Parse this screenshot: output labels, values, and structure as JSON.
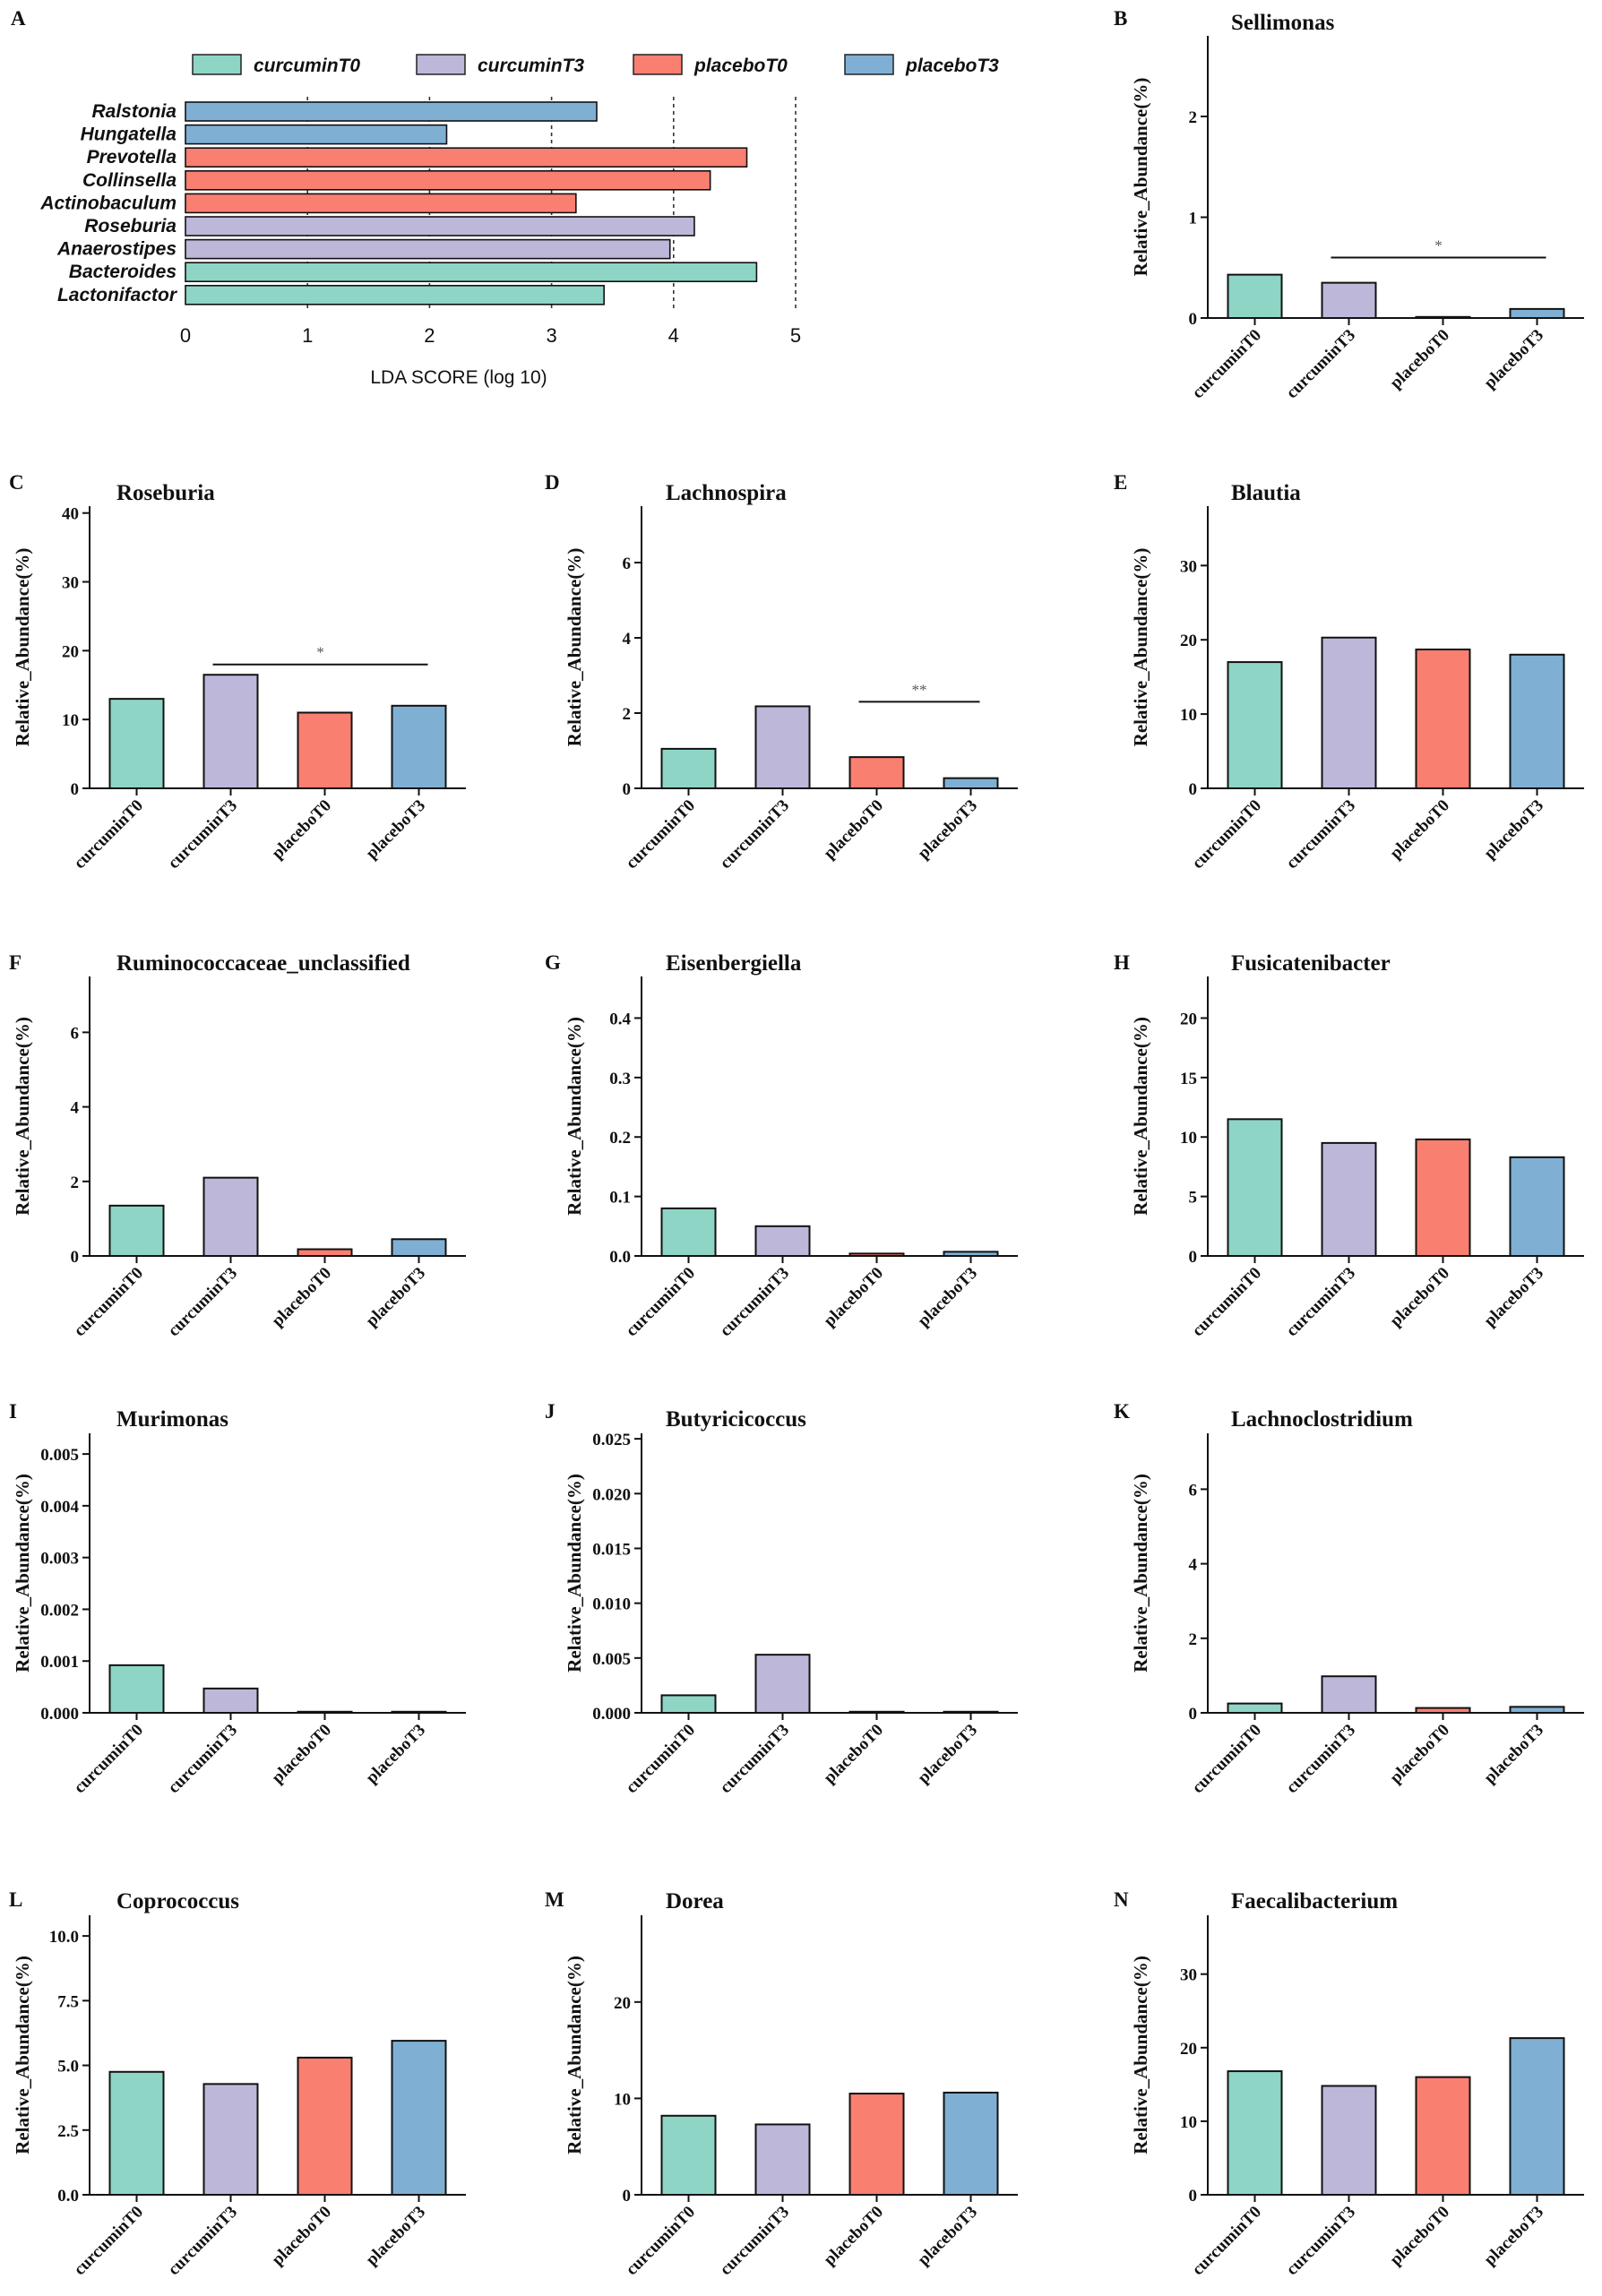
{
  "colors": {
    "curcuminT0": "#8ED5C6",
    "curcuminT3": "#BDB7DA",
    "placeboT0": "#F97F71",
    "placeboT3": "#7FB0D4",
    "axis": "#111111",
    "grid": "#333333"
  },
  "groups": [
    "curcuminT0",
    "curcuminT3",
    "placeboT0",
    "placeboT3"
  ],
  "chart_data": [
    {
      "panel": "A",
      "type": "bar",
      "orientation": "horizontal",
      "legend": [
        "curcuminT0",
        "curcuminT3",
        "placeboT0",
        "placeboT3"
      ],
      "xlabel": "LDA SCORE (log 10)",
      "xlim": [
        0,
        5
      ],
      "xticks": [
        "0",
        "1",
        "2",
        "3",
        "4",
        "5"
      ],
      "grid": "dotted vertical lines at 1-5",
      "taxa": [
        {
          "name": "Ralstonia",
          "group": "placeboT3",
          "value": 3.37
        },
        {
          "name": "Hungatella",
          "group": "placeboT3",
          "value": 2.14
        },
        {
          "name": "Prevotella",
          "group": "placeboT0",
          "value": 4.6
        },
        {
          "name": "Collinsella",
          "group": "placeboT0",
          "value": 4.3
        },
        {
          "name": "Actinobaculum",
          "group": "placeboT0",
          "value": 3.2
        },
        {
          "name": "Roseburia",
          "group": "curcuminT3",
          "value": 4.17
        },
        {
          "name": "Anaerostipes",
          "group": "curcuminT3",
          "value": 3.97
        },
        {
          "name": "Bacteroides",
          "group": "curcuminT0",
          "value": 4.68
        },
        {
          "name": "Lactonifactor",
          "group": "curcuminT0",
          "value": 3.43
        }
      ]
    },
    {
      "panel": "B",
      "type": "bar",
      "title": "Sellimonas",
      "ylabel": "Relative_Abundance(%)",
      "categories": [
        "curcuminT0",
        "curcuminT3",
        "placeboT0",
        "placeboT3"
      ],
      "values": [
        0.43,
        0.35,
        0.01,
        0.09
      ],
      "ylim": [
        0,
        2.8
      ],
      "yticks": [
        "0",
        "1",
        "2"
      ],
      "yticks_values": [
        0,
        1,
        2
      ],
      "sig": {
        "from": 1,
        "to": 3,
        "at": 0.6,
        "label": "*"
      }
    },
    {
      "panel": "C",
      "type": "bar",
      "title": "Roseburia",
      "ylabel": "Relative_Abundance(%)",
      "categories": [
        "curcuminT0",
        "curcuminT3",
        "placeboT0",
        "placeboT3"
      ],
      "values": [
        13,
        16.5,
        11,
        12
      ],
      "ylim": [
        0,
        41
      ],
      "yticks": [
        "0",
        "10",
        "20",
        "30",
        "40"
      ],
      "yticks_values": [
        0,
        10,
        20,
        30,
        40
      ],
      "sig": {
        "from": 1,
        "to": 3,
        "at": 18,
        "label": "*"
      }
    },
    {
      "panel": "D",
      "type": "bar",
      "title": "Lachnospira",
      "ylabel": "Relative_Abundance(%)",
      "categories": [
        "curcuminT0",
        "curcuminT3",
        "placeboT0",
        "placeboT3"
      ],
      "values": [
        1.05,
        2.18,
        0.83,
        0.27
      ],
      "ylim": [
        0,
        7.5
      ],
      "yticks": [
        "0",
        "2",
        "4",
        "6"
      ],
      "yticks_values": [
        0,
        2,
        4,
        6
      ],
      "sig": {
        "from": 2,
        "to": 3,
        "at": 2.3,
        "label": "**"
      }
    },
    {
      "panel": "E",
      "type": "bar",
      "title": "Blautia",
      "ylabel": "Relative_Abundance(%)",
      "categories": [
        "curcuminT0",
        "curcuminT3",
        "placeboT0",
        "placeboT3"
      ],
      "values": [
        17,
        20.3,
        18.7,
        18
      ],
      "ylim": [
        0,
        38
      ],
      "yticks": [
        "0",
        "10",
        "20",
        "30"
      ],
      "yticks_values": [
        0,
        10,
        20,
        30
      ]
    },
    {
      "panel": "F",
      "type": "bar",
      "title": "Ruminococcaceae_unclassified",
      "ylabel": "Relative_Abundance(%)",
      "categories": [
        "curcuminT0",
        "curcuminT3",
        "placeboT0",
        "placeboT3"
      ],
      "values": [
        1.35,
        2.1,
        0.18,
        0.45
      ],
      "ylim": [
        0,
        7.5
      ],
      "yticks": [
        "0",
        "2",
        "4",
        "6"
      ],
      "yticks_values": [
        0,
        2,
        4,
        6
      ]
    },
    {
      "panel": "G",
      "type": "bar",
      "title": "Eisenbergiella",
      "ylabel": "Relative_Abundance(%)",
      "categories": [
        "curcuminT0",
        "curcuminT3",
        "placeboT0",
        "placeboT3"
      ],
      "values": [
        0.08,
        0.05,
        0.004,
        0.007
      ],
      "ylim": [
        0,
        0.47
      ],
      "yticks": [
        "0.0",
        "0.1",
        "0.2",
        "0.3",
        "0.4"
      ],
      "yticks_values": [
        0,
        0.1,
        0.2,
        0.3,
        0.4
      ]
    },
    {
      "panel": "H",
      "type": "bar",
      "title": "Fusicatenibacter",
      "ylabel": "Relative_Abundance(%)",
      "categories": [
        "curcuminT0",
        "curcuminT3",
        "placeboT0",
        "placeboT3"
      ],
      "values": [
        11.5,
        9.5,
        9.8,
        8.3
      ],
      "ylim": [
        0,
        23.5
      ],
      "yticks": [
        "0",
        "5",
        "10",
        "15",
        "20"
      ],
      "yticks_values": [
        0,
        5,
        10,
        15,
        20
      ]
    },
    {
      "panel": "I",
      "type": "bar",
      "title": "Murimonas",
      "ylabel": "Relative_Abundance(%)",
      "categories": [
        "curcuminT0",
        "curcuminT3",
        "placeboT0",
        "placeboT3"
      ],
      "values": [
        0.00092,
        0.00047,
        1e-05,
        1e-05
      ],
      "ylim": [
        0,
        0.0054
      ],
      "yticks": [
        "0.000",
        "0.001",
        "0.002",
        "0.003",
        "0.004",
        "0.005"
      ],
      "yticks_values": [
        0,
        0.001,
        0.002,
        0.003,
        0.004,
        0.005
      ]
    },
    {
      "panel": "J",
      "type": "bar",
      "title": "Butyricicoccus",
      "ylabel": "Relative_Abundance(%)",
      "categories": [
        "curcuminT0",
        "curcuminT3",
        "placeboT0",
        "placeboT3"
      ],
      "values": [
        0.0016,
        0.0053,
        3e-05,
        3e-05
      ],
      "ylim": [
        0,
        0.0255
      ],
      "yticks": [
        "0.000",
        "0.005",
        "0.010",
        "0.015",
        "0.020",
        "0.025"
      ],
      "yticks_values": [
        0,
        0.005,
        0.01,
        0.015,
        0.02,
        0.025
      ]
    },
    {
      "panel": "K",
      "type": "bar",
      "title": "Lachnoclostridium",
      "ylabel": "Relative_Abundance(%)",
      "categories": [
        "curcuminT0",
        "curcuminT3",
        "placeboT0",
        "placeboT3"
      ],
      "values": [
        0.25,
        0.98,
        0.13,
        0.16
      ],
      "ylim": [
        0,
        7.5
      ],
      "yticks": [
        "0",
        "2",
        "4",
        "6"
      ],
      "yticks_values": [
        0,
        2,
        4,
        6
      ]
    },
    {
      "panel": "L",
      "type": "bar",
      "title": "Coprococcus",
      "ylabel": "Relative_Abundance(%)",
      "categories": [
        "curcuminT0",
        "curcuminT3",
        "placeboT0",
        "placeboT3"
      ],
      "values": [
        4.75,
        4.28,
        5.3,
        5.95
      ],
      "ylim": [
        0,
        10.8
      ],
      "yticks": [
        "0.0",
        "2.5",
        "5.0",
        "7.5",
        "10.0"
      ],
      "yticks_values": [
        0,
        2.5,
        5,
        7.5,
        10
      ]
    },
    {
      "panel": "M",
      "type": "bar",
      "title": "Dorea",
      "ylabel": "Relative_Abundance(%)",
      "categories": [
        "curcuminT0",
        "curcuminT3",
        "placeboT0",
        "placeboT3"
      ],
      "values": [
        8.2,
        7.3,
        10.5,
        10.6
      ],
      "ylim": [
        0,
        29
      ],
      "yticks": [
        "0",
        "10",
        "20"
      ],
      "yticks_values": [
        0,
        10,
        20
      ]
    },
    {
      "panel": "N",
      "type": "bar",
      "title": "Faecalibacterium",
      "ylabel": "Relative_Abundance(%)",
      "categories": [
        "curcuminT0",
        "curcuminT3",
        "placeboT0",
        "placeboT3"
      ],
      "values": [
        16.8,
        14.8,
        16,
        21.3
      ],
      "ylim": [
        0,
        38
      ],
      "yticks": [
        "0",
        "10",
        "20",
        "30"
      ],
      "yticks_values": [
        0,
        10,
        20,
        30
      ]
    }
  ]
}
